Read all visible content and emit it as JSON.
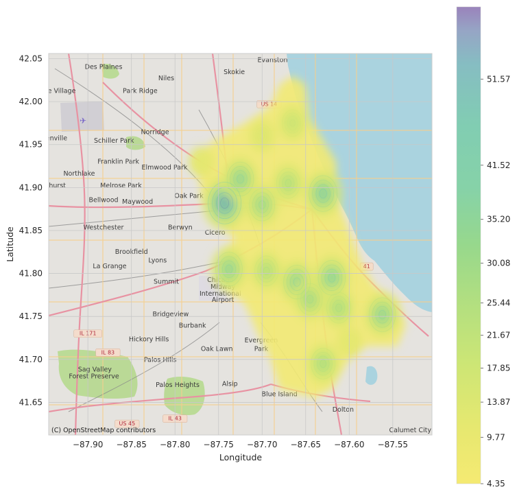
{
  "chart_data": {
    "type": "heatmap",
    "xlabel": "Longitude",
    "ylabel": "Latitude",
    "xlim": [
      -87.945,
      -87.505
    ],
    "ylim": [
      41.612,
      42.056
    ],
    "x_ticks": [
      -87.9,
      -87.85,
      -87.8,
      -87.75,
      -87.7,
      -87.65,
      -87.6,
      -87.55
    ],
    "x_tick_labels": [
      "−87.90",
      "−87.85",
      "−87.80",
      "−87.75",
      "−87.70",
      "−87.65",
      "−87.60",
      "−87.55"
    ],
    "y_ticks": [
      41.65,
      41.7,
      41.75,
      41.8,
      41.85,
      41.9,
      41.95,
      42.0,
      42.05
    ],
    "y_tick_labels": [
      "41.65",
      "41.70",
      "41.75",
      "41.80",
      "41.85",
      "41.90",
      "41.95",
      "42.00",
      "42.05"
    ],
    "grid": true,
    "colormap": "viridis_r",
    "colorbar": {
      "tick_values": [
        4.35,
        9.77,
        13.87,
        17.85,
        21.67,
        25.44,
        30.08,
        35.2,
        41.52,
        51.57
      ],
      "tick_labels": [
        "4.35",
        "9.77",
        "13.87",
        "17.85",
        "21.67",
        "25.44",
        "30.08",
        "35.20",
        "41.52",
        "51.57"
      ],
      "min": 4.35,
      "max": 60
    },
    "hotspots": [
      {
        "lon": -87.743,
        "lat": 41.882,
        "density": 60
      },
      {
        "lon": -87.725,
        "lat": 41.91,
        "density": 40
      },
      {
        "lon": -87.7,
        "lat": 41.88,
        "density": 36
      },
      {
        "lon": -87.63,
        "lat": 41.893,
        "density": 45
      },
      {
        "lon": -87.67,
        "lat": 41.905,
        "density": 30
      },
      {
        "lon": -87.738,
        "lat": 41.805,
        "density": 40
      },
      {
        "lon": -87.695,
        "lat": 41.803,
        "density": 30
      },
      {
        "lon": -87.66,
        "lat": 41.79,
        "density": 40
      },
      {
        "lon": -87.645,
        "lat": 41.77,
        "density": 34
      },
      {
        "lon": -87.62,
        "lat": 41.795,
        "density": 42
      },
      {
        "lon": -87.612,
        "lat": 41.76,
        "density": 32
      },
      {
        "lon": -87.562,
        "lat": 41.752,
        "density": 40
      },
      {
        "lon": -87.63,
        "lat": 41.695,
        "density": 32
      },
      {
        "lon": -87.665,
        "lat": 41.975,
        "density": 22
      },
      {
        "lon": -87.7,
        "lat": 41.96,
        "density": 14
      },
      {
        "lon": -87.77,
        "lat": 41.93,
        "density": 10
      },
      {
        "lon": -87.6,
        "lat": 41.72,
        "density": 10
      }
    ]
  },
  "map": {
    "attribution": "(C) OpenStreetMap contributors",
    "colors": {
      "land": "#e6e4e0",
      "water": "#aad3df",
      "park": "#b6d98f",
      "highway": "#e892a2",
      "road": "#f7d9a4",
      "rail": "#8a8a8a"
    },
    "places": [
      {
        "name": "Des Plaines",
        "lon": -87.882,
        "lat": 42.038
      },
      {
        "name": "Evanston",
        "lon": -87.688,
        "lat": 42.046
      },
      {
        "name": "Niles",
        "lon": -87.81,
        "lat": 42.025
      },
      {
        "name": "Skokie",
        "lon": -87.732,
        "lat": 42.032
      },
      {
        "name": "Park Ridge",
        "lon": -87.84,
        "lat": 42.01
      },
      {
        "name": "Franklin Park",
        "lon": -87.865,
        "lat": 41.928
      },
      {
        "name": "Schiller Park",
        "lon": -87.87,
        "lat": 41.952
      },
      {
        "name": "Norridge",
        "lon": -87.823,
        "lat": 41.962
      },
      {
        "name": "Northlake",
        "lon": -87.91,
        "lat": 41.914
      },
      {
        "name": "Elmwood Park",
        "lon": -87.812,
        "lat": 41.921
      },
      {
        "name": "Melrose Park",
        "lon": -87.862,
        "lat": 41.9
      },
      {
        "name": "Bellwood",
        "lon": -87.882,
        "lat": 41.883
      },
      {
        "name": "Maywood",
        "lon": -87.843,
        "lat": 41.881
      },
      {
        "name": "Oak Park",
        "lon": -87.784,
        "lat": 41.888
      },
      {
        "name": "Westchester",
        "lon": -87.882,
        "lat": 41.851
      },
      {
        "name": "Berwyn",
        "lon": -87.794,
        "lat": 41.851
      },
      {
        "name": "Cicero",
        "lon": -87.754,
        "lat": 41.845
      },
      {
        "name": "Brookfield",
        "lon": -87.85,
        "lat": 41.823
      },
      {
        "name": "La Grange",
        "lon": -87.875,
        "lat": 41.806
      },
      {
        "name": "Lyons",
        "lon": -87.82,
        "lat": 41.813
      },
      {
        "name": "Summit",
        "lon": -87.81,
        "lat": 41.788
      },
      {
        "name": "Bridgeview",
        "lon": -87.805,
        "lat": 41.75
      },
      {
        "name": "Burbank",
        "lon": -87.78,
        "lat": 41.737
      },
      {
        "name": "Hickory Hills",
        "lon": -87.83,
        "lat": 41.721
      },
      {
        "name": "Oak Lawn",
        "lon": -87.752,
        "lat": 41.71
      },
      {
        "name": "Palos Hills",
        "lon": -87.817,
        "lat": 41.697
      },
      {
        "name": "Palos Heights",
        "lon": -87.797,
        "lat": 41.668
      },
      {
        "name": "Alsip",
        "lon": -87.737,
        "lat": 41.669
      },
      {
        "name": "Evergreen",
        "lon": -87.701,
        "lat": 41.72
      },
      {
        "name": "Park",
        "lon": -87.701,
        "lat": 41.71
      },
      {
        "name": "Blue Island",
        "lon": -87.68,
        "lat": 41.657
      },
      {
        "name": "Dolton",
        "lon": -87.607,
        "lat": 41.639
      },
      {
        "name": "Calumet City",
        "lon": -87.53,
        "lat": 41.615
      },
      {
        "name": "Chicago",
        "lon": -87.748,
        "lat": 41.79
      },
      {
        "name": "Midway",
        "lon": -87.745,
        "lat": 41.782
      },
      {
        "name": "International",
        "lon": -87.748,
        "lat": 41.774
      },
      {
        "name": "Airport",
        "lon": -87.745,
        "lat": 41.767
      },
      {
        "name": "Sag Valley",
        "lon": -87.892,
        "lat": 41.686
      },
      {
        "name": "Forest Preserve",
        "lon": -87.893,
        "lat": 41.678
      },
      {
        "name": "enville",
        "lon": -87.936,
        "lat": 41.955
      },
      {
        "name": "hurst",
        "lon": -87.935,
        "lat": 41.9
      },
      {
        "name": "e Village",
        "lon": -87.93,
        "lat": 42.01
      }
    ],
    "shields": [
      {
        "text": "US 14",
        "lon": -87.692,
        "lat": 41.995
      },
      {
        "text": "IL 171",
        "lon": -87.9,
        "lat": 41.728
      },
      {
        "text": "IL 83",
        "lon": -87.877,
        "lat": 41.706
      },
      {
        "text": "US 45",
        "lon": -87.855,
        "lat": 41.623
      },
      {
        "text": "IL 43",
        "lon": -87.8,
        "lat": 41.629
      },
      {
        "text": "41",
        "lon": -87.58,
        "lat": 41.806
      }
    ]
  }
}
